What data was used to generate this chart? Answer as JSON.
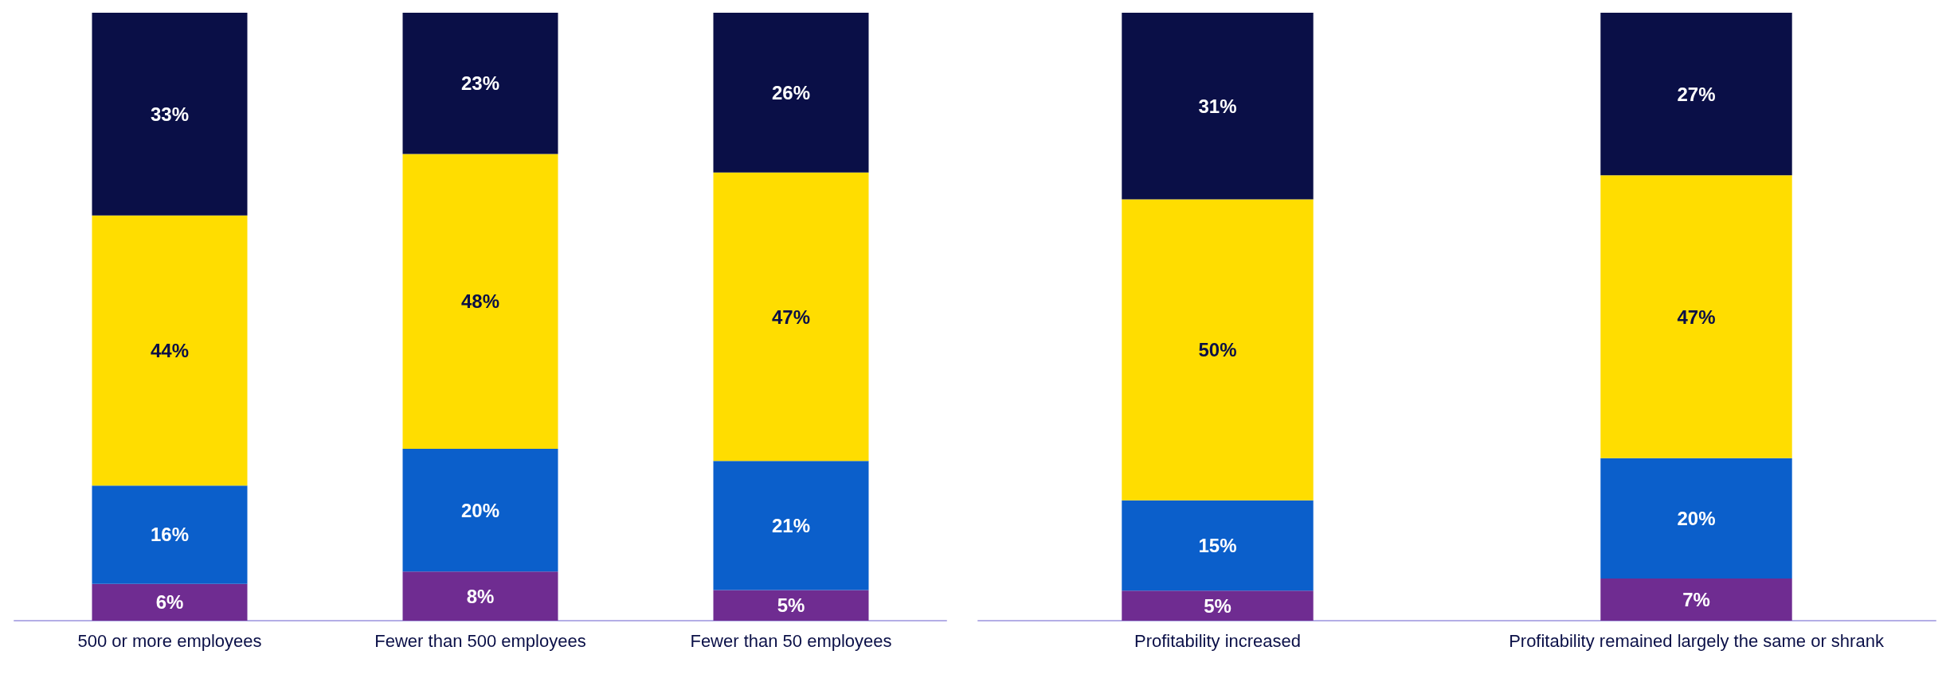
{
  "chart_data": [
    {
      "type": "bar",
      "stacked": true,
      "categories": [
        "500 or more employees",
        "Fewer than 500 employees",
        "Fewer than 50 employees"
      ],
      "series": [
        {
          "color": "#6f2c91",
          "values": [
            6,
            8,
            5
          ],
          "value_labels": [
            "6%",
            "8%",
            "5%"
          ]
        },
        {
          "color": "#0b5fcb",
          "values": [
            16,
            20,
            21
          ],
          "value_labels": [
            "16%",
            "20%",
            "21%"
          ]
        },
        {
          "color": "#ffdd00",
          "values": [
            44,
            48,
            47
          ],
          "value_labels": [
            "44%",
            "48%",
            "47%"
          ]
        },
        {
          "color": "#0a0f47",
          "values": [
            33,
            23,
            26
          ],
          "value_labels": [
            "33%",
            "23%",
            "26%"
          ]
        }
      ]
    },
    {
      "type": "bar",
      "stacked": true,
      "categories": [
        "Profitability increased",
        "Profitability remained largely the same or shrank"
      ],
      "series": [
        {
          "color": "#6f2c91",
          "values": [
            5,
            7
          ],
          "value_labels": [
            "5%",
            "7%"
          ]
        },
        {
          "color": "#0b5fcb",
          "values": [
            15,
            20
          ],
          "value_labels": [
            "15%",
            "20%"
          ]
        },
        {
          "color": "#ffdd00",
          "values": [
            50,
            47
          ],
          "value_labels": [
            "50%",
            "47%"
          ]
        },
        {
          "color": "#0a0f47",
          "values": [
            31,
            27
          ],
          "value_labels": [
            "31%",
            "27%"
          ]
        }
      ]
    }
  ]
}
